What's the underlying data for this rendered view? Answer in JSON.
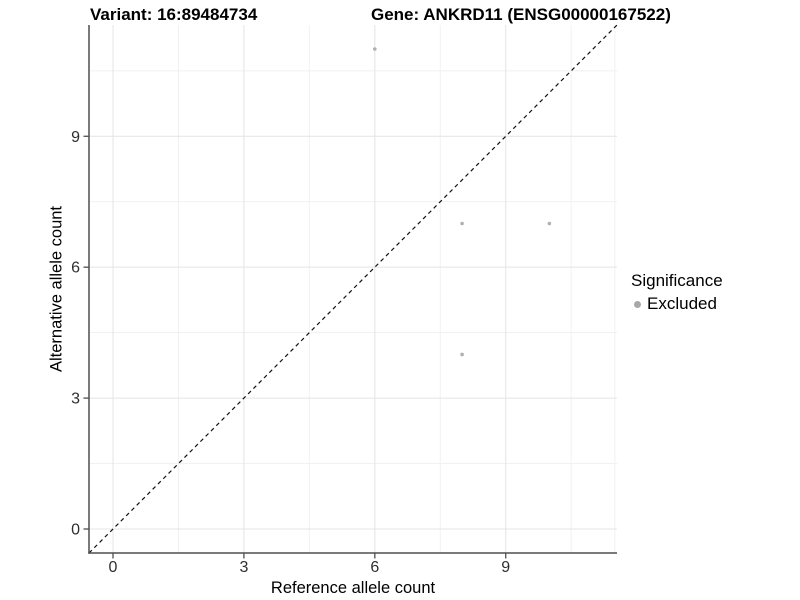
{
  "header": {
    "variant_title": "Variant: 16:89484734",
    "gene_title": "Gene: ANKRD11 (ENSG00000167522)"
  },
  "chart_data": {
    "type": "scatter",
    "title_left": "Variant: 16:89484734",
    "title_right": "Gene: ANKRD11 (ENSG00000167522)",
    "xlabel": "Reference allele count",
    "ylabel": "Alternative allele count",
    "xlim": [
      -0.55,
      11.55
    ],
    "ylim": [
      -0.55,
      11.55
    ],
    "x_ticks": [
      0,
      3,
      6,
      9
    ],
    "y_ticks": [
      0,
      3,
      6,
      9
    ],
    "x_minor": [
      1.5,
      4.5,
      7.5,
      10.5,
      11.5
    ],
    "y_minor": [
      1.5,
      4.5,
      7.5,
      10.5
    ],
    "grid": true,
    "identity_line": {
      "style": "dashed",
      "slope": 1,
      "intercept": 0
    },
    "series": [
      {
        "name": "Excluded",
        "points": [
          [
            6,
            11
          ],
          [
            8,
            7
          ],
          [
            10,
            7
          ],
          [
            8,
            4
          ]
        ]
      }
    ],
    "legend": {
      "position": "right",
      "title": "Significance",
      "items": [
        {
          "label": "Excluded"
        }
      ]
    }
  },
  "colors": {
    "background": "#ffffff",
    "grid_major": "#e4e4e4",
    "grid_minor": "#f1f1f1",
    "axis_line": "#4f4f4f",
    "tick_label": "#2e2e2e",
    "point": "#b0b0b0",
    "identity_line": "#111111",
    "legend_key": "#a8a8a8"
  }
}
